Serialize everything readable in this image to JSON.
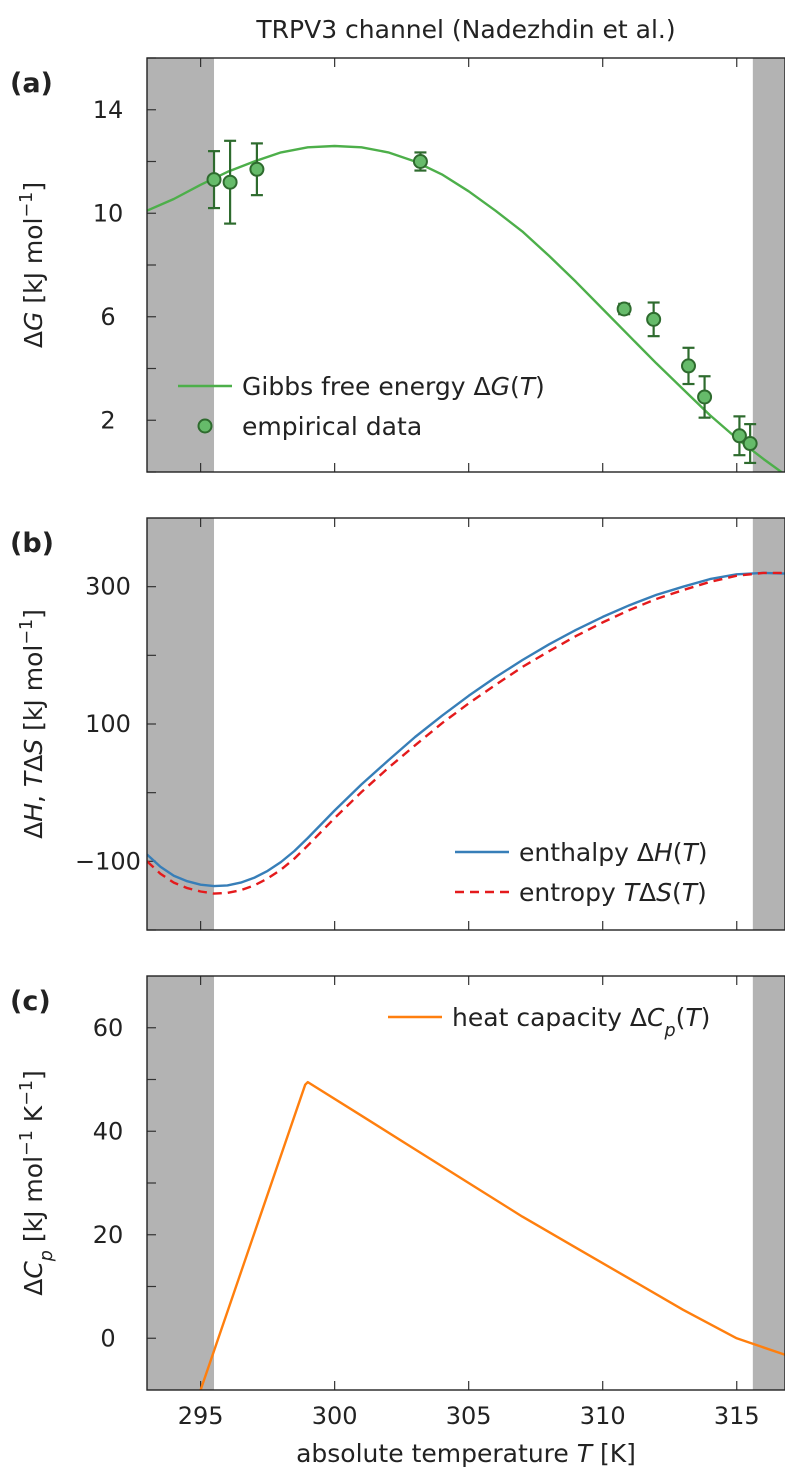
{
  "figure": {
    "title": "TRPV3 channel (Nadezhdin et al.)",
    "xlabel": "absolute temperature T [K]"
  },
  "chart_data": [
    {
      "id": "a",
      "panel_label": "(a)",
      "type": "line",
      "ylabel": "ΔG [kJ mol⁻¹]",
      "xlim": [
        293,
        316.8
      ],
      "ylim": [
        0,
        16
      ],
      "xticks": [
        295,
        300,
        305,
        310,
        315
      ],
      "yticks": [
        2,
        6,
        10,
        14
      ],
      "shaded_x_ranges": [
        [
          293,
          295.5
        ],
        [
          315.6,
          316.8
        ]
      ],
      "legend_position": "lower-left",
      "series": [
        {
          "name": "Gibbs free energy ΔG(T)",
          "kind": "line",
          "color": "#4daf4a",
          "x": [
            293,
            294,
            295,
            296,
            297,
            298,
            299,
            300,
            301,
            302,
            303,
            304,
            305,
            306,
            307,
            308,
            309,
            310,
            311,
            312,
            313,
            314,
            315,
            316,
            316.8
          ],
          "y": [
            10.1,
            10.55,
            11.1,
            11.6,
            12.0,
            12.35,
            12.55,
            12.6,
            12.55,
            12.35,
            12.0,
            11.5,
            10.85,
            10.1,
            9.3,
            8.35,
            7.35,
            6.3,
            5.25,
            4.2,
            3.2,
            2.2,
            1.3,
            0.5,
            -0.1
          ]
        },
        {
          "name": "empirical data",
          "kind": "scatter",
          "color": "#66bb6a",
          "edge_color": "#2e6b2e",
          "x": [
            295.5,
            296.1,
            297.1,
            303.2,
            310.8,
            311.9,
            313.2,
            313.8,
            315.1,
            315.5
          ],
          "y": [
            11.3,
            11.2,
            11.7,
            12.0,
            6.3,
            5.9,
            4.1,
            2.9,
            1.4,
            1.1
          ],
          "yerr": [
            1.1,
            1.6,
            1.0,
            0.35,
            0.2,
            0.65,
            0.7,
            0.8,
            0.75,
            0.75
          ]
        }
      ]
    },
    {
      "id": "b",
      "panel_label": "(b)",
      "type": "line",
      "ylabel": "ΔH, TΔS [kJ mol⁻¹]",
      "xlim": [
        293,
        316.8
      ],
      "ylim": [
        -200,
        400
      ],
      "xticks": [
        295,
        300,
        305,
        310,
        315
      ],
      "yticks": [
        -100,
        100,
        300
      ],
      "yminor": [
        -200,
        0,
        200
      ],
      "shaded_x_ranges": [
        [
          293,
          295.5
        ],
        [
          315.6,
          316.8
        ]
      ],
      "legend_position": "lower-right",
      "series": [
        {
          "name": "enthalpy ΔH(T)",
          "style": "solid",
          "color": "#377eb8",
          "x": [
            293,
            293.5,
            294,
            294.5,
            295,
            295.5,
            296,
            296.5,
            297,
            297.5,
            298,
            298.5,
            299,
            300,
            301,
            302,
            303,
            304,
            305,
            306,
            307,
            308,
            309,
            310,
            311,
            312,
            313,
            314,
            315,
            316,
            316.8
          ],
          "y": [
            -90,
            -108,
            -121,
            -129,
            -134,
            -136,
            -135,
            -131,
            -124,
            -114,
            -101,
            -85,
            -66,
            -26,
            12,
            47,
            81,
            112,
            141,
            168,
            193,
            216,
            237,
            256,
            273,
            288,
            300,
            311,
            318,
            320,
            319
          ]
        },
        {
          "name": "entropy TΔS(T)",
          "style": "dashed",
          "color": "#e41a1c",
          "x": [
            293,
            293.5,
            294,
            294.5,
            295,
            295.5,
            296,
            296.5,
            297,
            297.5,
            298,
            298.5,
            299,
            300,
            301,
            302,
            303,
            304,
            305,
            306,
            307,
            308,
            309,
            310,
            311,
            312,
            313,
            314,
            315,
            316,
            316.8
          ],
          "y": [
            -100,
            -118,
            -131,
            -139,
            -144,
            -147,
            -146,
            -142,
            -135,
            -125,
            -112,
            -96,
            -77,
            -37,
            1,
            36,
            69,
            101,
            130,
            157,
            183,
            206,
            228,
            248,
            266,
            282,
            295,
            307,
            316,
            320,
            320
          ]
        }
      ]
    },
    {
      "id": "c",
      "panel_label": "(c)",
      "type": "line",
      "ylabel": "ΔCp [kJ mol⁻¹ K⁻¹]",
      "xlim": [
        293,
        316.8
      ],
      "ylim": [
        -10,
        70
      ],
      "xticks": [
        295,
        300,
        305,
        310,
        315
      ],
      "yticks": [
        0,
        20,
        40,
        60
      ],
      "yminor": [
        10,
        30,
        50
      ],
      "shaded_x_ranges": [
        [
          293,
          295.5
        ],
        [
          315.6,
          316.8
        ]
      ],
      "legend_position": "top-right",
      "series": [
        {
          "name": "heat capacity ΔCp(T)",
          "color": "#ff7f0e",
          "x": [
            295.0,
            298.9,
            299.0,
            301,
            303,
            305,
            307,
            309,
            311,
            313,
            315,
            316.8
          ],
          "y": [
            -10,
            49,
            49.5,
            43,
            36.5,
            30,
            23.5,
            17.5,
            11.5,
            5.5,
            0,
            -3.2
          ]
        }
      ]
    }
  ]
}
